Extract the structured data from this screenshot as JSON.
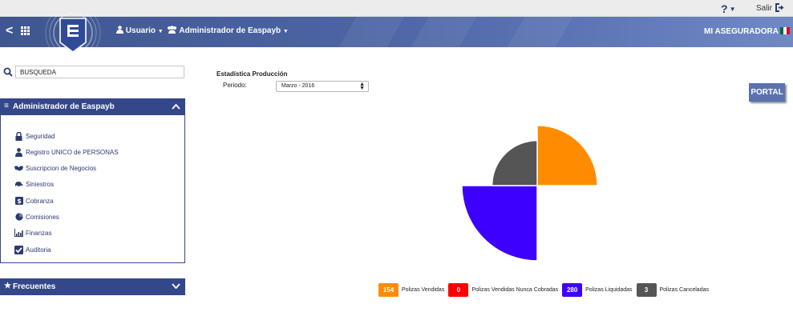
{
  "topbar": {
    "help_glyph": "?",
    "logout_label": "Salir"
  },
  "nav": {
    "back_glyph": "<",
    "user_menu_label": "Usuario",
    "admin_menu_label": "Administrador de Easpayb",
    "company_name": "MI ASEGURADORA",
    "flag_colors": [
      "#006847",
      "#ffffff",
      "#ce1126"
    ]
  },
  "sidebar": {
    "search_value": "BUSQUEDA",
    "admin_panel": {
      "title": "Administrador de Easpayb",
      "items": [
        {
          "label": "Seguridad",
          "icon": "lock-icon"
        },
        {
          "label": "Registro UNICO de PERSONAS",
          "icon": "person-icon"
        },
        {
          "label": "Suscripcion de Negocios",
          "icon": "handshake-icon"
        },
        {
          "label": "Siniestros",
          "icon": "car-icon"
        },
        {
          "label": "Cobranza",
          "icon": "dollar-icon"
        },
        {
          "label": "Comisiones",
          "icon": "pie-chart-icon"
        },
        {
          "label": "Finanzas",
          "icon": "bar-chart-icon"
        },
        {
          "label": "Auditoria",
          "icon": "checkbox-icon"
        }
      ]
    },
    "frequent_panel": {
      "title": "Frecuentes"
    }
  },
  "main": {
    "stats_title": "Estadística Producción",
    "period_label": "Periodo:",
    "period_value": "Marzo - 2016",
    "portal_label": "PORTAL"
  },
  "chart_data": {
    "type": "pie",
    "categories": [
      "Polizas Vendidas",
      "Polizas Vendidas Nunca Cobradas",
      "Polizas Liquidadas",
      "Polizas Canceladas"
    ],
    "values": [
      154,
      0,
      280,
      3
    ],
    "colors": [
      "#ff8c00",
      "#ff0000",
      "#3d00ff",
      "#555555"
    ],
    "value_labels": [
      "154",
      "0",
      "280",
      "3"
    ],
    "legend_position": "bottom"
  },
  "colors": {
    "brand_dark": "#34478a",
    "nav_blue": "#4c64a3"
  }
}
